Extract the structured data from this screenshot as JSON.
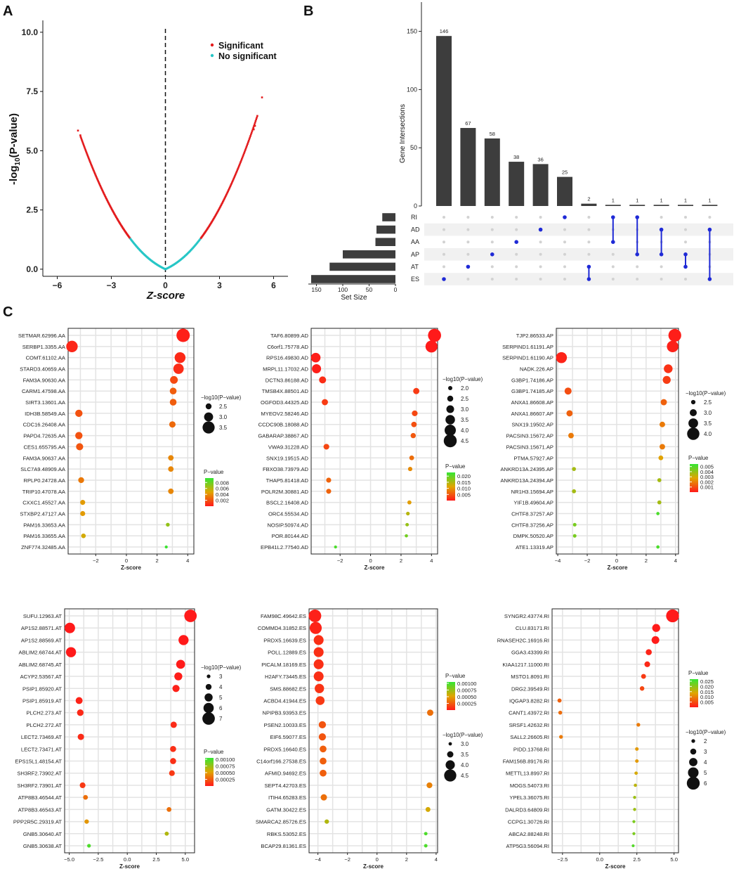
{
  "panels": {
    "a": "A",
    "b": "B",
    "c": "C"
  },
  "chart_data": [
    {
      "id": "A",
      "type": "scatter",
      "title": "",
      "xlabel": "Z-score",
      "ylabel": "-log10(P-value)",
      "ylabel_base": "-log",
      "ylabel_sub": "10",
      "ylabel_rest": "(P-value)",
      "xlim": [
        -6.8,
        6.8
      ],
      "ylim": [
        -0.3,
        10.5
      ],
      "xticks": [
        -6,
        -3,
        0,
        3,
        6
      ],
      "xtick_labels": [
        "−6",
        "−3",
        "0",
        "3",
        "6"
      ],
      "yticks": [
        0,
        2.5,
        5,
        7.5,
        10
      ],
      "ytick_labels": [
        "0.0",
        "2.5",
        "5.0",
        "7.5",
        "10.0"
      ],
      "threshold_x": 0,
      "legend": [
        {
          "label": "Significant",
          "color": "#e31a1c"
        },
        {
          "label": "No significant",
          "color": "#26c6c6"
        }
      ],
      "legend_position": "top-right",
      "model": "p = 2 * (1 - Phi(|z|)); y = -log10(p); significant when p < 0.05",
      "series": [
        {
          "name": "negative arm",
          "z_range": [
            -4.7,
            0
          ]
        },
        {
          "name": "positive arm",
          "z_range": [
            0,
            5.1
          ]
        }
      ],
      "outliers": [
        {
          "z": -4.85,
          "y": 5.85
        },
        {
          "z": -4.72,
          "y": 5.65
        },
        {
          "z": 5.36,
          "y": 7.25
        },
        {
          "z": 4.97,
          "y": 6.05
        },
        {
          "z": 4.9,
          "y": 5.9
        }
      ]
    },
    {
      "id": "B",
      "type": "bar",
      "subtype": "upset",
      "ylabel": "Gene Intersections",
      "ylim": [
        0,
        160
      ],
      "yticks": [
        0,
        50,
        100,
        150
      ],
      "intersections": [
        146,
        67,
        58,
        38,
        36,
        25,
        2,
        1,
        1,
        1,
        1,
        1
      ],
      "value_labels": [
        "146",
        "67",
        "58",
        "38",
        "36",
        "25",
        "2",
        "1",
        "1",
        "1",
        "1",
        "1"
      ],
      "sets": [
        "RI",
        "AD",
        "AA",
        "AP",
        "AT",
        "ES"
      ],
      "set_sizes": [
        25,
        36,
        38,
        100,
        125,
        160
      ],
      "set_size_label": "Set Size",
      "set_size_ticks": [
        150,
        100,
        50,
        0
      ],
      "membership": [
        [
          "ES"
        ],
        [
          "AT"
        ],
        [
          "AP"
        ],
        [
          "AA"
        ],
        [
          "AD"
        ],
        [
          "RI"
        ],
        [
          "AT",
          "ES"
        ],
        [
          "AA",
          "RI"
        ],
        [
          "AP",
          "RI"
        ],
        [
          "AD",
          "AP"
        ],
        [
          "AT",
          "AP"
        ],
        [
          "AD",
          "ES"
        ]
      ],
      "dot_color": "#1f2ad6"
    },
    {
      "id": "C-AA",
      "type": "scatter",
      "subtype": "bubble",
      "xlabel": "Z-score",
      "xlim": [
        -3.8,
        4.4
      ],
      "xticks": [
        -2,
        0,
        2,
        4
      ],
      "xtick_labels": [
        "−2",
        "0",
        "2",
        "4"
      ],
      "genes": [
        "SETMAR.62996.AA",
        "SERBP1.3355.AA",
        "COMT.61102.AA",
        "STARD3.40659.AA",
        "FAM3A.90630.AA",
        "CARM1.47598.AA",
        "SIRT3.13601.AA",
        "IDH3B.58549.AA",
        "CDC16.26408.AA",
        "PAPD4.72635.AA",
        "CES1.655795.AA",
        "FAM3A.90637.AA",
        "SLC7A9.48909.AA",
        "RPLP0.24728.AA",
        "TRIP10.47078.AA",
        "CXXC1.45527.AA",
        "STXBP2.47127.AA",
        "PAM16.33653.AA",
        "PAM16.33655.AA",
        "ZNF774.32485.AA"
      ],
      "z": [
        3.7,
        -3.55,
        3.5,
        3.4,
        3.1,
        3.05,
        3.05,
        -3.1,
        3.0,
        -3.1,
        -3.05,
        2.9,
        2.9,
        -2.95,
        2.9,
        -2.85,
        -2.85,
        2.7,
        -2.8,
        2.6
      ],
      "p": [
        0.0002,
        0.0004,
        0.0005,
        0.0006,
        0.0016,
        0.0023,
        0.0023,
        0.0019,
        0.0027,
        0.0019,
        0.002,
        0.0037,
        0.0037,
        0.0032,
        0.0037,
        0.0044,
        0.0044,
        0.0069,
        0.0051,
        0.0093
      ],
      "size_legend_title": "−log10(P−value)",
      "size_legend_values": [
        2.5,
        3.0,
        3.5
      ],
      "size_legend_labels": [
        "2.5",
        "3.0",
        "3.5"
      ],
      "color_legend_title": "P−value",
      "color_legend_ticks": [
        0.008,
        0.006,
        0.004,
        0.002
      ],
      "color_legend_labels": [
        "0.008",
        "0.006",
        "0.004",
        "0.002"
      ],
      "color_range": [
        0,
        0.0095
      ],
      "size_range": [
        2.0,
        3.7
      ]
    },
    {
      "id": "C-AD",
      "type": "scatter",
      "subtype": "bubble",
      "xlabel": "Z-score",
      "xlim": [
        -3.9,
        4.4
      ],
      "xticks": [
        -2,
        0,
        2,
        4
      ],
      "xtick_labels": [
        "−2",
        "0",
        "2",
        "4"
      ],
      "genes": [
        "TAF6.80899.AD",
        "C6orf1.75778.AD",
        "RPS16.49830.AD",
        "MRPL11.17032.AD",
        "DCTN3.86188.AD",
        "TMSB4X.88501.AD",
        "OGFOD3.44325.AD",
        "MYEOV2.58246.AD",
        "CCDC90B.18088.AD",
        "GABARAP.38867.AD",
        "VWA9.31228.AD",
        "SNX19.19515.AD",
        "FBXO38.73979.AD",
        "THAP5.81418.AD",
        "POLR2M.30881.AD",
        "BSCL2.16408.AD",
        "ORC4.55534.AD",
        "NOSIP.50974.AD",
        "POR.80144.AD",
        "EPB41L2.77540.AD"
      ],
      "z": [
        4.2,
        4.0,
        -3.6,
        -3.55,
        -3.15,
        3.0,
        -3.0,
        2.9,
        2.85,
        2.8,
        -2.9,
        2.7,
        2.6,
        -2.75,
        -2.75,
        2.55,
        2.45,
        2.4,
        2.35,
        -2.3
      ],
      "p": [
        3e-05,
        6e-05,
        0.0003,
        0.0004,
        0.0016,
        0.0027,
        0.0027,
        0.0037,
        0.0044,
        0.0051,
        0.0037,
        0.0069,
        0.0093,
        0.006,
        0.006,
        0.0108,
        0.0143,
        0.0164,
        0.0188,
        0.0214
      ],
      "size_legend_title": "−log10(P−value)",
      "size_legend_values": [
        2.0,
        2.5,
        3.0,
        3.5,
        4.0,
        4.5
      ],
      "size_legend_labels": [
        "2.0",
        "2.5",
        "3.0",
        "3.5",
        "4.0",
        "4.5"
      ],
      "color_legend_title": "P−value",
      "color_legend_ticks": [
        0.02,
        0.015,
        0.01,
        0.005
      ],
      "color_legend_labels": [
        "0.020",
        "0.015",
        "0.010",
        "0.005"
      ],
      "color_range": [
        0,
        0.023
      ],
      "size_range": [
        1.6,
        4.6
      ]
    },
    {
      "id": "C-AP",
      "type": "scatter",
      "subtype": "bubble",
      "xlabel": "Z-score",
      "xlim": [
        -4.1,
        4.2
      ],
      "xticks": [
        -4,
        -2,
        0,
        2,
        4
      ],
      "xtick_labels": [
        "−4",
        "−2",
        "0",
        "2",
        "4"
      ],
      "genes": [
        "TJP2.86533.AP",
        "SERPIND1.61191.AP",
        "SERPIND1.61190.AP",
        "NADK.226.AP",
        "G3BP1.74186.AP",
        "G3BP1.74185.AP",
        "ANXA1.86608.AP",
        "ANXA1.86607.AP",
        "SNX19.19502.AP",
        "PACSIN3.15672.AP",
        "PACSIN3.15671.AP",
        "PTMA.57927.AP",
        "ANKRD13A.24395.AP",
        "ANKRD13A.24394.AP",
        "NR1H3.15694.AP",
        "YIF1B.49604.AP",
        "CHTF8.37257.AP",
        "CHTF8.37256.AP",
        "DMPK.50520.AP",
        "ATE1.13319.AP"
      ],
      "z": [
        3.95,
        3.8,
        -3.75,
        3.5,
        3.4,
        -3.3,
        3.2,
        -3.2,
        3.1,
        -3.1,
        3.1,
        3.0,
        -2.9,
        2.9,
        -2.9,
        2.9,
        2.8,
        -2.85,
        -2.85,
        2.8
      ],
      "p": [
        8e-05,
        0.00014,
        0.00018,
        0.00047,
        0.00067,
        0.001,
        0.0014,
        0.0014,
        0.0019,
        0.0019,
        0.0019,
        0.0027,
        0.0037,
        0.0037,
        0.0037,
        0.0037,
        0.0051,
        0.0044,
        0.0044,
        0.0051
      ],
      "size_legend_title": "−log10(P−value)",
      "size_legend_values": [
        2.5,
        3.0,
        3.5,
        4.0
      ],
      "size_legend_labels": [
        "2.5",
        "3.0",
        "3.5",
        "4.0"
      ],
      "color_legend_title": "P−value",
      "color_legend_ticks": [
        0.005,
        0.004,
        0.003,
        0.002,
        0.001
      ],
      "color_legend_labels": [
        "0.005",
        "0.004",
        "0.003",
        "0.002",
        "0.001"
      ],
      "color_range": [
        0,
        0.0055
      ],
      "size_range": [
        2.2,
        4.2
      ]
    },
    {
      "id": "C-AT",
      "type": "scatter",
      "subtype": "bubble",
      "xlabel": "Z-score",
      "xlim": [
        -5.4,
        5.8
      ],
      "xticks": [
        -5,
        -2.5,
        0,
        2.5,
        5
      ],
      "xtick_labels": [
        "−5.0",
        "−2.5",
        "0.0",
        "2.5",
        "5.0"
      ],
      "genes": [
        "SUFU.12963.AT",
        "AP1S2.88571.AT",
        "AP1S2.88569.AT",
        "ABLIM2.68744.AT",
        "ABLIM2.68745.AT",
        "ACYP2.53567.AT",
        "PSIP1.85920.AT",
        "PSIP1.85919.AT",
        "PLCH2.273.AT",
        "PLCH2.272.AT",
        "LECT2.73469.AT",
        "LECT2.73471.AT",
        "EPS15L1.48154.AT",
        "SH3RF2.73902.AT",
        "SH3RF2.73901.AT",
        "ATP8B3.46544.AT",
        "ATP8B3.46543.AT",
        "PPP2R5C.29319.AT",
        "GNB5.30640.AT",
        "GNB5.30638.AT"
      ],
      "z": [
        5.45,
        -4.95,
        4.85,
        -4.85,
        4.6,
        4.4,
        4.2,
        -4.15,
        -4.05,
        4.0,
        -4.0,
        3.95,
        3.95,
        3.85,
        -3.85,
        -3.6,
        3.6,
        -3.5,
        3.4,
        -3.3
      ],
      "p": [
        1e-07,
        8e-07,
        1.2e-06,
        1.2e-06,
        4e-06,
        1.1e-05,
        2.7e-05,
        3.3e-05,
        5.1e-05,
        6.3e-05,
        6.3e-05,
        7.8e-05,
        7.8e-05,
        0.000118,
        0.000118,
        0.00032,
        0.00032,
        0.00047,
        0.00067,
        0.00097
      ],
      "size_legend_title": "−log10(P−value)",
      "size_legend_values": [
        3,
        4,
        5,
        6,
        7
      ],
      "size_legend_labels": [
        "3",
        "4",
        "5",
        "6",
        "7"
      ],
      "color_legend_title": "P−value",
      "color_legend_ticks": [
        0.001,
        0.00075,
        0.0005,
        0.00025
      ],
      "color_legend_labels": [
        "0.00100",
        "0.00075",
        "0.00050",
        "0.00025"
      ],
      "color_range": [
        0,
        0.00105
      ],
      "size_range": [
        2.6,
        7.4
      ]
    },
    {
      "id": "C-ES",
      "type": "scatter",
      "subtype": "bubble",
      "xlabel": "Z-score",
      "xlim": [
        -4.6,
        4.1
      ],
      "xticks": [
        -4,
        -2,
        0,
        2,
        4
      ],
      "xtick_labels": [
        "−4",
        "−2",
        "0",
        "2",
        "4"
      ],
      "genes": [
        "FAM98C.49642.ES",
        "COMMD4.31852.ES",
        "PRDX5.16639.ES",
        "POLL.12889.ES",
        "PICALM.18169.ES",
        "H2AFY.73445.ES",
        "SMS.88682.ES",
        "ACBD4.41944.ES",
        "NPIPB3.93953.ES",
        "PSEN2.10033.ES",
        "EIF6.59077.ES",
        "PRDX5.16640.ES",
        "C14orf166.27538.ES",
        "AFMID.94692.ES",
        "SEPT4.42703.ES",
        "ITIH4.65283.ES",
        "GATM.30422.ES",
        "SMARCA2.85726.ES",
        "RBKS.53052.ES",
        "BCAP29.81361.ES"
      ],
      "z": [
        -4.2,
        -4.15,
        -3.95,
        -3.95,
        -3.95,
        -3.95,
        -3.9,
        -3.85,
        3.6,
        -3.7,
        -3.7,
        -3.65,
        -3.65,
        -3.65,
        3.55,
        -3.6,
        3.45,
        -3.4,
        3.3,
        3.3
      ],
      "p": [
        2.7e-05,
        3.3e-05,
        7.8e-05,
        7.8e-05,
        7.8e-05,
        7.8e-05,
        9.6e-05,
        0.000118,
        0.00032,
        0.00022,
        0.00022,
        0.00026,
        0.00026,
        0.00026,
        0.00039,
        0.00032,
        0.00056,
        0.00067,
        0.00097,
        0.00097
      ],
      "size_legend_title": "−log10(P−value)",
      "size_legend_values": [
        3.0,
        3.5,
        4.0,
        4.5
      ],
      "size_legend_labels": [
        "3.0",
        "3.5",
        "4.0",
        "4.5"
      ],
      "color_legend_title": "P−value",
      "color_legend_ticks": [
        0.001,
        0.00075,
        0.0005,
        0.00025
      ],
      "color_legend_labels": [
        "0.00100",
        "0.00075",
        "0.00050",
        "0.00025"
      ],
      "color_range": [
        0,
        0.00105
      ],
      "size_range": [
        2.9,
        4.7
      ]
    },
    {
      "id": "C-RI",
      "type": "scatter",
      "subtype": "bubble",
      "xlabel": "Z-score",
      "xlim": [
        -3.2,
        5.3
      ],
      "xticks": [
        -2.5,
        0,
        2.5,
        5
      ],
      "xtick_labels": [
        "−2.5",
        "0.0",
        "2.5",
        "5.0"
      ],
      "genes": [
        "SYNGR2.43774.RI",
        "CLU.83171.RI",
        "RNASEH2C.16916.RI",
        "GGA3.43399.RI",
        "KIAA1217.11000.RI",
        "MSTO1.8091.RI",
        "DRG2.39549.RI",
        "IQGAP3.8282.RI",
        "CANT1.43972.RI",
        "SRSF1.42632.RI",
        "SALL2.26605.RI",
        "PIDD.13768.RI",
        "FAM156B.89176.RI",
        "METTL13.8997.RI",
        "MOGS.54073.RI",
        "YPEL3.36075.RI",
        "DALRD3.64809.RI",
        "CCPG1.30726.RI",
        "ABCA2.88248.RI",
        "ATP5G3.56094.RI"
      ],
      "z": [
        4.9,
        3.8,
        3.75,
        3.3,
        3.2,
        2.95,
        2.85,
        -2.7,
        -2.65,
        2.6,
        -2.6,
        2.5,
        2.5,
        2.45,
        2.4,
        2.35,
        2.35,
        2.3,
        2.3,
        2.25
      ],
      "p": [
        1e-06,
        0.00014,
        0.00018,
        0.00097,
        0.0014,
        0.0032,
        0.0044,
        0.0069,
        0.008,
        0.0093,
        0.0093,
        0.0124,
        0.0124,
        0.0143,
        0.0164,
        0.0188,
        0.0188,
        0.0214,
        0.0214,
        0.0244
      ],
      "size_legend_title": "−log10(P−value)",
      "size_legend_values": [
        2,
        3,
        4,
        5,
        6
      ],
      "size_legend_labels": [
        "2",
        "3",
        "4",
        "5",
        "6"
      ],
      "color_legend_title": "P−value",
      "color_legend_ticks": [
        0.025,
        0.02,
        0.015,
        0.01,
        0.005
      ],
      "color_legend_labels": [
        "0.025",
        "0.020",
        "0.015",
        "0.010",
        "0.005"
      ],
      "color_range": [
        0,
        0.027
      ],
      "size_range": [
        1.6,
        6.2
      ]
    }
  ]
}
